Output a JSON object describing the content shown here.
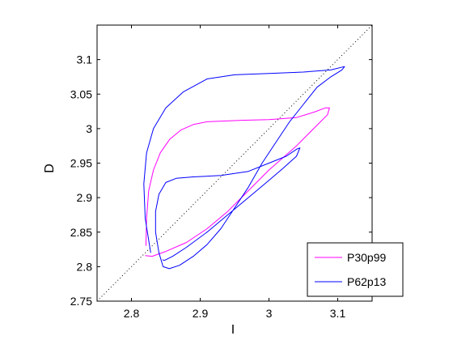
{
  "chart_data": {
    "type": "line",
    "title": "",
    "xlabel": "I",
    "ylabel": "D",
    "xlim": [
      2.75,
      3.15
    ],
    "ylim": [
      2.75,
      3.15
    ],
    "xticks": [
      2.8,
      2.9,
      3,
      3.1
    ],
    "yticks": [
      2.75,
      2.8,
      2.85,
      2.9,
      2.95,
      3,
      3.05,
      3.1
    ],
    "xtick_labels": [
      "2.8",
      "2.9",
      "3",
      "3.1"
    ],
    "ytick_labels": [
      "2.75",
      "2.8",
      "2.85",
      "2.9",
      "2.95",
      "3",
      "3.05",
      "3.1"
    ],
    "grid": false,
    "legend_position": "bottom-right",
    "reference_line": {
      "style": "dotted",
      "color": "#000000",
      "x": [
        2.75,
        3.15
      ],
      "y": [
        2.75,
        3.15
      ]
    },
    "series": [
      {
        "name": "P30p99",
        "color": "#ff00ff",
        "x": [
          2.821,
          2.822,
          2.825,
          2.832,
          2.842,
          2.856,
          2.872,
          2.89,
          2.91,
          2.935,
          2.96,
          3.0,
          3.04,
          3.066,
          3.082,
          3.088,
          3.085,
          3.07,
          3.04,
          3.0,
          2.97,
          2.94,
          2.91,
          2.88,
          2.85,
          2.83,
          2.82
        ],
        "y": [
          2.83,
          2.87,
          2.91,
          2.94,
          2.965,
          2.985,
          2.998,
          3.006,
          3.01,
          3.011,
          3.012,
          3.013,
          3.016,
          3.024,
          3.03,
          3.03,
          3.02,
          3.005,
          2.975,
          2.94,
          2.91,
          2.88,
          2.855,
          2.835,
          2.822,
          2.815,
          2.816
        ]
      },
      {
        "name": "P62p13",
        "color": "#0000ff",
        "x": [
          2.828,
          2.82,
          2.818,
          2.822,
          2.832,
          2.85,
          2.875,
          2.91,
          2.95,
          3.0,
          3.05,
          3.09,
          3.11,
          3.106,
          3.09,
          3.07,
          3.05,
          3.03,
          3.01,
          2.99,
          2.97,
          2.95,
          2.93,
          2.91,
          2.89,
          2.87,
          2.855,
          2.846,
          2.84,
          2.835,
          2.835,
          2.84,
          2.85,
          2.865,
          2.89,
          2.93,
          2.97,
          3.0,
          3.025,
          3.04,
          3.045,
          3.04,
          3.02,
          3.0,
          2.97,
          2.94,
          2.91,
          2.88,
          2.86,
          2.848,
          2.845
        ],
        "y": [
          2.82,
          2.87,
          2.92,
          2.965,
          3.0,
          3.03,
          3.053,
          3.072,
          3.078,
          3.08,
          3.082,
          3.085,
          3.09,
          3.085,
          3.075,
          3.06,
          3.035,
          3.01,
          2.98,
          2.95,
          2.915,
          2.885,
          2.855,
          2.832,
          2.815,
          2.802,
          2.797,
          2.8,
          2.82,
          2.85,
          2.88,
          2.905,
          2.922,
          2.928,
          2.93,
          2.932,
          2.938,
          2.95,
          2.96,
          2.97,
          2.972,
          2.96,
          2.942,
          2.925,
          2.9,
          2.875,
          2.85,
          2.828,
          2.815,
          2.809,
          2.81
        ]
      }
    ]
  }
}
